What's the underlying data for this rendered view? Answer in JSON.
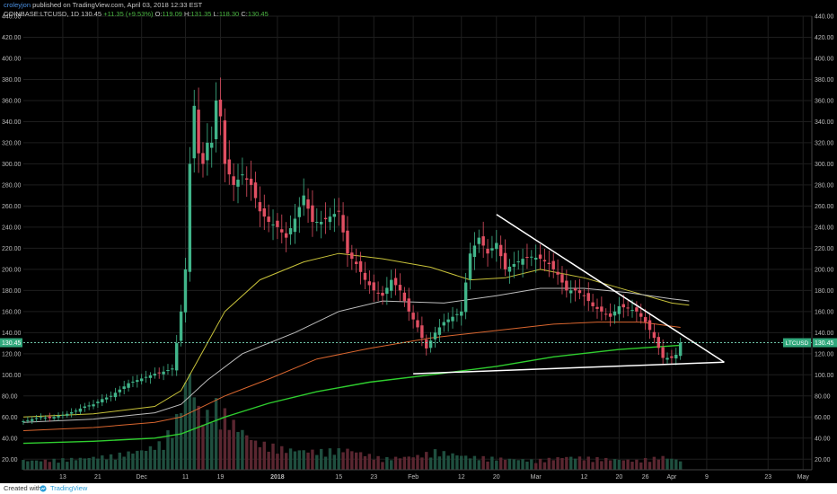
{
  "header": {
    "author": "croleyjon",
    "published": "published on TradingView.com, April 03, 2018 12:33 EST",
    "symbol": "COINBASE:LTCUSD, 1D",
    "last": "130.45",
    "change": "+11.35 (+9.53%)",
    "ohlc": {
      "o_label": "O:",
      "o": "119.09",
      "h_label": "H:",
      "h": "131.35",
      "l_label": "L:",
      "l": "118.30",
      "c_label": "C:",
      "c": "130.45"
    }
  },
  "colors": {
    "background": "#000000",
    "up": "#41b58a",
    "down": "#e04f62",
    "grid": "#1e1e1e",
    "price_line": "#7fe0c0",
    "ma_yellow": "#c8c23a",
    "ma_white": "#bdbdbd",
    "ma_orange": "#d9662f",
    "ma_green": "#2fce2f",
    "trendline": "#ffffff"
  },
  "chart_data": {
    "type": "candlestick",
    "symbol": "LTCUSD",
    "timeframe": "1D",
    "xlim": [
      "2017-11-04",
      "2018-05-03"
    ],
    "ylim": [
      10,
      440
    ],
    "yticks": [
      20,
      40,
      60,
      80,
      100,
      120,
      140,
      160,
      180,
      200,
      220,
      240,
      260,
      280,
      300,
      320,
      340,
      360,
      380,
      400,
      420,
      440
    ],
    "xticks": [
      {
        "label": "13",
        "date": "2017-11-13"
      },
      {
        "label": "21",
        "date": "2017-11-21"
      },
      {
        "label": "Dec",
        "date": "2017-12-01"
      },
      {
        "label": "11",
        "date": "2017-12-11"
      },
      {
        "label": "19",
        "date": "2017-12-19"
      },
      {
        "label": "2018",
        "date": "2018-01-01"
      },
      {
        "label": "15",
        "date": "2018-01-15"
      },
      {
        "label": "23",
        "date": "2018-01-23"
      },
      {
        "label": "Feb",
        "date": "2018-02-01"
      },
      {
        "label": "12",
        "date": "2018-02-12"
      },
      {
        "label": "20",
        "date": "2018-02-20"
      },
      {
        "label": "Mar",
        "date": "2018-03-01"
      },
      {
        "label": "12",
        "date": "2018-03-12"
      },
      {
        "label": "20",
        "date": "2018-03-20"
      },
      {
        "label": "26",
        "date": "2018-03-26"
      },
      {
        "label": "Apr",
        "date": "2018-04-01"
      },
      {
        "label": "9",
        "date": "2018-04-09"
      },
      {
        "label": "23",
        "date": "2018-04-23"
      },
      {
        "label": "May",
        "date": "2018-05-01"
      }
    ],
    "last_price": {
      "value": 130.45,
      "label": "LTCUSD",
      "value_label": "130.45"
    },
    "close_series": [
      [
        "2017-11-04",
        56
      ],
      [
        "2017-11-06",
        58
      ],
      [
        "2017-11-08",
        60
      ],
      [
        "2017-11-10",
        59
      ],
      [
        "2017-11-12",
        61
      ],
      [
        "2017-11-14",
        63
      ],
      [
        "2017-11-16",
        66
      ],
      [
        "2017-11-18",
        70
      ],
      [
        "2017-11-20",
        72
      ],
      [
        "2017-11-22",
        77
      ],
      [
        "2017-11-24",
        80
      ],
      [
        "2017-11-26",
        86
      ],
      [
        "2017-11-28",
        92
      ],
      [
        "2017-11-30",
        95
      ],
      [
        "2017-12-02",
        98
      ],
      [
        "2017-12-04",
        101
      ],
      [
        "2017-12-06",
        103
      ],
      [
        "2017-12-08",
        106
      ],
      [
        "2017-12-09",
        130
      ],
      [
        "2017-12-10",
        160
      ],
      [
        "2017-12-11",
        200
      ],
      [
        "2017-12-12",
        300
      ],
      [
        "2017-12-13",
        355
      ],
      [
        "2017-12-14",
        310
      ],
      [
        "2017-12-15",
        300
      ],
      [
        "2017-12-16",
        320
      ],
      [
        "2017-12-17",
        320
      ],
      [
        "2017-12-18",
        360
      ],
      [
        "2017-12-19",
        345
      ],
      [
        "2017-12-20",
        300
      ],
      [
        "2017-12-22",
        280
      ],
      [
        "2017-12-24",
        290
      ],
      [
        "2017-12-26",
        280
      ],
      [
        "2017-12-28",
        255
      ],
      [
        "2017-12-30",
        245
      ],
      [
        "2018-01-01",
        240
      ],
      [
        "2018-01-03",
        230
      ],
      [
        "2018-01-05",
        248
      ],
      [
        "2018-01-07",
        270
      ],
      [
        "2018-01-09",
        245
      ],
      [
        "2018-01-11",
        245
      ],
      [
        "2018-01-13",
        250
      ],
      [
        "2018-01-15",
        255
      ],
      [
        "2018-01-17",
        215
      ],
      [
        "2018-01-19",
        205
      ],
      [
        "2018-01-21",
        190
      ],
      [
        "2018-01-23",
        180
      ],
      [
        "2018-01-25",
        175
      ],
      [
        "2018-01-27",
        190
      ],
      [
        "2018-01-29",
        180
      ],
      [
        "2018-01-31",
        160
      ],
      [
        "2018-02-02",
        145
      ],
      [
        "2018-02-04",
        125
      ],
      [
        "2018-02-06",
        140
      ],
      [
        "2018-02-08",
        150
      ],
      [
        "2018-02-10",
        155
      ],
      [
        "2018-02-12",
        160
      ],
      [
        "2018-02-14",
        215
      ],
      [
        "2018-02-16",
        230
      ],
      [
        "2018-02-18",
        215
      ],
      [
        "2018-02-20",
        225
      ],
      [
        "2018-02-22",
        200
      ],
      [
        "2018-02-24",
        205
      ],
      [
        "2018-02-26",
        210
      ],
      [
        "2018-02-28",
        212
      ],
      [
        "2018-03-02",
        210
      ],
      [
        "2018-03-04",
        205
      ],
      [
        "2018-03-06",
        195
      ],
      [
        "2018-03-08",
        180
      ],
      [
        "2018-03-10",
        180
      ],
      [
        "2018-03-12",
        175
      ],
      [
        "2018-03-14",
        165
      ],
      [
        "2018-03-16",
        160
      ],
      [
        "2018-03-18",
        155
      ],
      [
        "2018-03-20",
        165
      ],
      [
        "2018-03-22",
        163
      ],
      [
        "2018-03-24",
        160
      ],
      [
        "2018-03-26",
        150
      ],
      [
        "2018-03-28",
        135
      ],
      [
        "2018-03-30",
        116
      ],
      [
        "2018-04-01",
        116
      ],
      [
        "2018-04-02",
        119
      ],
      [
        "2018-04-03",
        130.45
      ]
    ],
    "moving_averages": [
      {
        "color_key": "ma_yellow",
        "points": [
          [
            "2017-11-04",
            60
          ],
          [
            "2017-11-20",
            63
          ],
          [
            "2017-12-04",
            70
          ],
          [
            "2017-12-10",
            85
          ],
          [
            "2017-12-14",
            115
          ],
          [
            "2017-12-20",
            160
          ],
          [
            "2017-12-28",
            190
          ],
          [
            "2018-01-07",
            207
          ],
          [
            "2018-01-15",
            215
          ],
          [
            "2018-01-25",
            210
          ],
          [
            "2018-02-05",
            202
          ],
          [
            "2018-02-14",
            190
          ],
          [
            "2018-02-22",
            192
          ],
          [
            "2018-03-02",
            200
          ],
          [
            "2018-03-12",
            192
          ],
          [
            "2018-03-22",
            180
          ],
          [
            "2018-04-01",
            168
          ],
          [
            "2018-04-05",
            166
          ]
        ]
      },
      {
        "color_key": "ma_white",
        "points": [
          [
            "2017-11-04",
            55
          ],
          [
            "2017-11-20",
            58
          ],
          [
            "2017-12-04",
            64
          ],
          [
            "2017-12-10",
            72
          ],
          [
            "2017-12-16",
            95
          ],
          [
            "2017-12-24",
            120
          ],
          [
            "2018-01-05",
            140
          ],
          [
            "2018-01-15",
            160
          ],
          [
            "2018-01-25",
            170
          ],
          [
            "2018-02-08",
            168
          ],
          [
            "2018-02-20",
            175
          ],
          [
            "2018-03-02",
            182
          ],
          [
            "2018-03-12",
            182
          ],
          [
            "2018-03-22",
            178
          ],
          [
            "2018-04-01",
            172
          ],
          [
            "2018-04-05",
            170
          ]
        ]
      },
      {
        "color_key": "ma_orange",
        "points": [
          [
            "2017-11-04",
            47
          ],
          [
            "2017-11-20",
            50
          ],
          [
            "2017-12-04",
            55
          ],
          [
            "2017-12-10",
            60
          ],
          [
            "2017-12-20",
            80
          ],
          [
            "2017-12-30",
            96
          ],
          [
            "2018-01-10",
            115
          ],
          [
            "2018-01-22",
            125
          ],
          [
            "2018-02-05",
            135
          ],
          [
            "2018-02-20",
            142
          ],
          [
            "2018-03-05",
            148
          ],
          [
            "2018-03-15",
            150
          ],
          [
            "2018-03-25",
            150
          ],
          [
            "2018-04-03",
            145
          ]
        ]
      },
      {
        "color_key": "ma_green",
        "points": [
          [
            "2017-11-04",
            35
          ],
          [
            "2017-11-20",
            37
          ],
          [
            "2017-12-04",
            40
          ],
          [
            "2017-12-10",
            44
          ],
          [
            "2017-12-20",
            60
          ],
          [
            "2017-12-30",
            73
          ],
          [
            "2018-01-10",
            84
          ],
          [
            "2018-01-22",
            93
          ],
          [
            "2018-02-05",
            100
          ],
          [
            "2018-02-20",
            108
          ],
          [
            "2018-03-05",
            117
          ],
          [
            "2018-03-20",
            124
          ],
          [
            "2018-04-03",
            128
          ]
        ]
      }
    ],
    "volume": [
      [
        "2017-11-08",
        10
      ],
      [
        "2017-11-16",
        12
      ],
      [
        "2017-11-24",
        15
      ],
      [
        "2017-12-02",
        22
      ],
      [
        "2017-12-06",
        30
      ],
      [
        "2017-12-09",
        55
      ],
      [
        "2017-12-11",
        90
      ],
      [
        "2017-12-12",
        110
      ],
      [
        "2017-12-13",
        80
      ],
      [
        "2017-12-15",
        55
      ],
      [
        "2017-12-18",
        70
      ],
      [
        "2017-12-20",
        60
      ],
      [
        "2017-12-22",
        50
      ],
      [
        "2017-12-27",
        30
      ],
      [
        "2018-01-03",
        22
      ],
      [
        "2018-01-10",
        20
      ],
      [
        "2018-01-17",
        22
      ],
      [
        "2018-01-25",
        12
      ],
      [
        "2018-02-02",
        15
      ],
      [
        "2018-02-06",
        20
      ],
      [
        "2018-02-14",
        14
      ],
      [
        "2018-02-22",
        12
      ],
      [
        "2018-03-01",
        10
      ],
      [
        "2018-03-08",
        14
      ],
      [
        "2018-03-16",
        12
      ],
      [
        "2018-03-24",
        10
      ],
      [
        "2018-03-30",
        14
      ],
      [
        "2018-04-03",
        10
      ]
    ],
    "trendlines": [
      {
        "from": [
          "2018-02-20",
          252
        ],
        "to": [
          "2018-04-13",
          112
        ]
      },
      {
        "from": [
          "2018-02-01",
          101
        ],
        "to": [
          "2018-04-13",
          112
        ]
      }
    ]
  },
  "footer": {
    "created_with": "Created with",
    "brand": "TradingView"
  }
}
